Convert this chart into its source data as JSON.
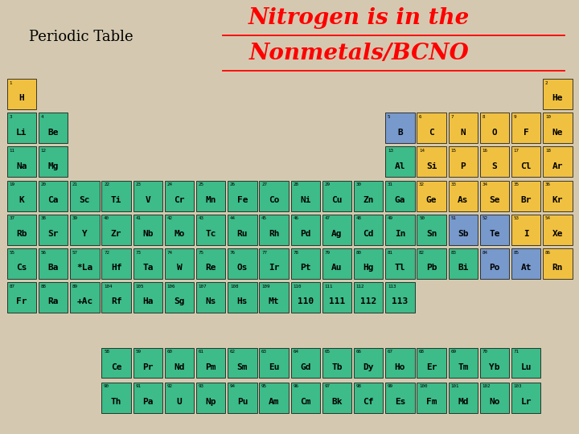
{
  "bg_color": "#d4c9b0",
  "title_left": "Periodic Table",
  "title_right_line1": "Nitrogen is in the",
  "title_right_line2": "Nonmetals/BCNO",
  "elements": [
    {
      "sym": "H",
      "num": 1,
      "col": 1,
      "row": 1,
      "color": "yellow"
    },
    {
      "sym": "He",
      "num": 2,
      "col": 18,
      "row": 1,
      "color": "yellow"
    },
    {
      "sym": "Li",
      "num": 3,
      "col": 1,
      "row": 2,
      "color": "green"
    },
    {
      "sym": "Be",
      "num": 4,
      "col": 2,
      "row": 2,
      "color": "green"
    },
    {
      "sym": "B",
      "num": 5,
      "col": 13,
      "row": 2,
      "color": "blue"
    },
    {
      "sym": "C",
      "num": 6,
      "col": 14,
      "row": 2,
      "color": "yellow"
    },
    {
      "sym": "N",
      "num": 7,
      "col": 15,
      "row": 2,
      "color": "yellow"
    },
    {
      "sym": "O",
      "num": 8,
      "col": 16,
      "row": 2,
      "color": "yellow"
    },
    {
      "sym": "F",
      "num": 9,
      "col": 17,
      "row": 2,
      "color": "yellow"
    },
    {
      "sym": "Ne",
      "num": 10,
      "col": 18,
      "row": 2,
      "color": "yellow"
    },
    {
      "sym": "Na",
      "num": 11,
      "col": 1,
      "row": 3,
      "color": "green"
    },
    {
      "sym": "Mg",
      "num": 12,
      "col": 2,
      "row": 3,
      "color": "green"
    },
    {
      "sym": "Al",
      "num": 13,
      "col": 13,
      "row": 3,
      "color": "green"
    },
    {
      "sym": "Si",
      "num": 14,
      "col": 14,
      "row": 3,
      "color": "yellow"
    },
    {
      "sym": "P",
      "num": 15,
      "col": 15,
      "row": 3,
      "color": "yellow"
    },
    {
      "sym": "S",
      "num": 16,
      "col": 16,
      "row": 3,
      "color": "yellow"
    },
    {
      "sym": "Cl",
      "num": 17,
      "col": 17,
      "row": 3,
      "color": "yellow"
    },
    {
      "sym": "Ar",
      "num": 18,
      "col": 18,
      "row": 3,
      "color": "yellow"
    },
    {
      "sym": "K",
      "num": 19,
      "col": 1,
      "row": 4,
      "color": "green"
    },
    {
      "sym": "Ca",
      "num": 20,
      "col": 2,
      "row": 4,
      "color": "green"
    },
    {
      "sym": "Sc",
      "num": 21,
      "col": 3,
      "row": 4,
      "color": "green"
    },
    {
      "sym": "Ti",
      "num": 22,
      "col": 4,
      "row": 4,
      "color": "green"
    },
    {
      "sym": "V",
      "num": 23,
      "col": 5,
      "row": 4,
      "color": "green"
    },
    {
      "sym": "Cr",
      "num": 24,
      "col": 6,
      "row": 4,
      "color": "green"
    },
    {
      "sym": "Mn",
      "num": 25,
      "col": 7,
      "row": 4,
      "color": "green"
    },
    {
      "sym": "Fe",
      "num": 26,
      "col": 8,
      "row": 4,
      "color": "green"
    },
    {
      "sym": "Co",
      "num": 27,
      "col": 9,
      "row": 4,
      "color": "green"
    },
    {
      "sym": "Ni",
      "num": 28,
      "col": 10,
      "row": 4,
      "color": "green"
    },
    {
      "sym": "Cu",
      "num": 29,
      "col": 11,
      "row": 4,
      "color": "green"
    },
    {
      "sym": "Zn",
      "num": 30,
      "col": 12,
      "row": 4,
      "color": "green"
    },
    {
      "sym": "Ga",
      "num": 31,
      "col": 13,
      "row": 4,
      "color": "green"
    },
    {
      "sym": "Ge",
      "num": 32,
      "col": 14,
      "row": 4,
      "color": "yellow"
    },
    {
      "sym": "As",
      "num": 33,
      "col": 15,
      "row": 4,
      "color": "yellow"
    },
    {
      "sym": "Se",
      "num": 34,
      "col": 16,
      "row": 4,
      "color": "yellow"
    },
    {
      "sym": "Br",
      "num": 35,
      "col": 17,
      "row": 4,
      "color": "yellow"
    },
    {
      "sym": "Kr",
      "num": 36,
      "col": 18,
      "row": 4,
      "color": "yellow"
    },
    {
      "sym": "Rb",
      "num": 37,
      "col": 1,
      "row": 5,
      "color": "green"
    },
    {
      "sym": "Sr",
      "num": 38,
      "col": 2,
      "row": 5,
      "color": "green"
    },
    {
      "sym": "Y",
      "num": 39,
      "col": 3,
      "row": 5,
      "color": "green"
    },
    {
      "sym": "Zr",
      "num": 40,
      "col": 4,
      "row": 5,
      "color": "green"
    },
    {
      "sym": "Nb",
      "num": 41,
      "col": 5,
      "row": 5,
      "color": "green"
    },
    {
      "sym": "Mo",
      "num": 42,
      "col": 6,
      "row": 5,
      "color": "green"
    },
    {
      "sym": "Tc",
      "num": 43,
      "col": 7,
      "row": 5,
      "color": "green"
    },
    {
      "sym": "Ru",
      "num": 44,
      "col": 8,
      "row": 5,
      "color": "green"
    },
    {
      "sym": "Rh",
      "num": 45,
      "col": 9,
      "row": 5,
      "color": "green"
    },
    {
      "sym": "Pd",
      "num": 46,
      "col": 10,
      "row": 5,
      "color": "green"
    },
    {
      "sym": "Ag",
      "num": 47,
      "col": 11,
      "row": 5,
      "color": "green"
    },
    {
      "sym": "Cd",
      "num": 48,
      "col": 12,
      "row": 5,
      "color": "green"
    },
    {
      "sym": "In",
      "num": 49,
      "col": 13,
      "row": 5,
      "color": "green"
    },
    {
      "sym": "Sn",
      "num": 50,
      "col": 14,
      "row": 5,
      "color": "green"
    },
    {
      "sym": "Sb",
      "num": 51,
      "col": 15,
      "row": 5,
      "color": "blue"
    },
    {
      "sym": "Te",
      "num": 52,
      "col": 16,
      "row": 5,
      "color": "blue"
    },
    {
      "sym": "I",
      "num": 53,
      "col": 17,
      "row": 5,
      "color": "yellow"
    },
    {
      "sym": "Xe",
      "num": 54,
      "col": 18,
      "row": 5,
      "color": "yellow"
    },
    {
      "sym": "Cs",
      "num": 55,
      "col": 1,
      "row": 6,
      "color": "green"
    },
    {
      "sym": "Ba",
      "num": 56,
      "col": 2,
      "row": 6,
      "color": "green"
    },
    {
      "sym": "*La",
      "num": 57,
      "col": 3,
      "row": 6,
      "color": "green"
    },
    {
      "sym": "Hf",
      "num": 72,
      "col": 4,
      "row": 6,
      "color": "green"
    },
    {
      "sym": "Ta",
      "num": 73,
      "col": 5,
      "row": 6,
      "color": "green"
    },
    {
      "sym": "W",
      "num": 74,
      "col": 6,
      "row": 6,
      "color": "green"
    },
    {
      "sym": "Re",
      "num": 75,
      "col": 7,
      "row": 6,
      "color": "green"
    },
    {
      "sym": "Os",
      "num": 76,
      "col": 8,
      "row": 6,
      "color": "green"
    },
    {
      "sym": "Ir",
      "num": 77,
      "col": 9,
      "row": 6,
      "color": "green"
    },
    {
      "sym": "Pt",
      "num": 78,
      "col": 10,
      "row": 6,
      "color": "green"
    },
    {
      "sym": "Au",
      "num": 79,
      "col": 11,
      "row": 6,
      "color": "green"
    },
    {
      "sym": "Hg",
      "num": 80,
      "col": 12,
      "row": 6,
      "color": "green"
    },
    {
      "sym": "Tl",
      "num": 81,
      "col": 13,
      "row": 6,
      "color": "green"
    },
    {
      "sym": "Pb",
      "num": 82,
      "col": 14,
      "row": 6,
      "color": "green"
    },
    {
      "sym": "Bi",
      "num": 83,
      "col": 15,
      "row": 6,
      "color": "green"
    },
    {
      "sym": "Po",
      "num": 84,
      "col": 16,
      "row": 6,
      "color": "blue"
    },
    {
      "sym": "At",
      "num": 85,
      "col": 17,
      "row": 6,
      "color": "blue"
    },
    {
      "sym": "Rn",
      "num": 86,
      "col": 18,
      "row": 6,
      "color": "yellow"
    },
    {
      "sym": "Fr",
      "num": 87,
      "col": 1,
      "row": 7,
      "color": "green"
    },
    {
      "sym": "Ra",
      "num": 88,
      "col": 2,
      "row": 7,
      "color": "green"
    },
    {
      "sym": "+Ac",
      "num": 89,
      "col": 3,
      "row": 7,
      "color": "green"
    },
    {
      "sym": "Rf",
      "num": 104,
      "col": 4,
      "row": 7,
      "color": "green"
    },
    {
      "sym": "Ha",
      "num": 105,
      "col": 5,
      "row": 7,
      "color": "green"
    },
    {
      "sym": "Sg",
      "num": 106,
      "col": 6,
      "row": 7,
      "color": "green"
    },
    {
      "sym": "Ns",
      "num": 107,
      "col": 7,
      "row": 7,
      "color": "green"
    },
    {
      "sym": "Hs",
      "num": 108,
      "col": 8,
      "row": 7,
      "color": "green"
    },
    {
      "sym": "Mt",
      "num": 109,
      "col": 9,
      "row": 7,
      "color": "green"
    },
    {
      "sym": "110",
      "num": 110,
      "col": 10,
      "row": 7,
      "color": "green"
    },
    {
      "sym": "111",
      "num": 111,
      "col": 11,
      "row": 7,
      "color": "green"
    },
    {
      "sym": "112",
      "num": 112,
      "col": 12,
      "row": 7,
      "color": "green"
    },
    {
      "sym": "113",
      "num": 113,
      "col": 13,
      "row": 7,
      "color": "green"
    },
    {
      "sym": "Ce",
      "num": 58,
      "col": 4,
      "row": 9,
      "color": "green"
    },
    {
      "sym": "Pr",
      "num": 59,
      "col": 5,
      "row": 9,
      "color": "green"
    },
    {
      "sym": "Nd",
      "num": 60,
      "col": 6,
      "row": 9,
      "color": "green"
    },
    {
      "sym": "Pm",
      "num": 61,
      "col": 7,
      "row": 9,
      "color": "green"
    },
    {
      "sym": "Sm",
      "num": 62,
      "col": 8,
      "row": 9,
      "color": "green"
    },
    {
      "sym": "Eu",
      "num": 63,
      "col": 9,
      "row": 9,
      "color": "green"
    },
    {
      "sym": "Gd",
      "num": 64,
      "col": 10,
      "row": 9,
      "color": "green"
    },
    {
      "sym": "Tb",
      "num": 65,
      "col": 11,
      "row": 9,
      "color": "green"
    },
    {
      "sym": "Dy",
      "num": 66,
      "col": 12,
      "row": 9,
      "color": "green"
    },
    {
      "sym": "Ho",
      "num": 67,
      "col": 13,
      "row": 9,
      "color": "green"
    },
    {
      "sym": "Er",
      "num": 68,
      "col": 14,
      "row": 9,
      "color": "green"
    },
    {
      "sym": "Tm",
      "num": 69,
      "col": 15,
      "row": 9,
      "color": "green"
    },
    {
      "sym": "Yb",
      "num": 70,
      "col": 16,
      "row": 9,
      "color": "green"
    },
    {
      "sym": "Lu",
      "num": 71,
      "col": 17,
      "row": 9,
      "color": "green"
    },
    {
      "sym": "Th",
      "num": 90,
      "col": 4,
      "row": 10,
      "color": "green"
    },
    {
      "sym": "Pa",
      "num": 91,
      "col": 5,
      "row": 10,
      "color": "green"
    },
    {
      "sym": "U",
      "num": 92,
      "col": 6,
      "row": 10,
      "color": "green"
    },
    {
      "sym": "Np",
      "num": 93,
      "col": 7,
      "row": 10,
      "color": "green"
    },
    {
      "sym": "Pu",
      "num": 94,
      "col": 8,
      "row": 10,
      "color": "green"
    },
    {
      "sym": "Am",
      "num": 95,
      "col": 9,
      "row": 10,
      "color": "green"
    },
    {
      "sym": "Cm",
      "num": 96,
      "col": 10,
      "row": 10,
      "color": "green"
    },
    {
      "sym": "Bk",
      "num": 97,
      "col": 11,
      "row": 10,
      "color": "green"
    },
    {
      "sym": "Cf",
      "num": 98,
      "col": 12,
      "row": 10,
      "color": "green"
    },
    {
      "sym": "Es",
      "num": 99,
      "col": 13,
      "row": 10,
      "color": "green"
    },
    {
      "sym": "Fm",
      "num": 100,
      "col": 14,
      "row": 10,
      "color": "green"
    },
    {
      "sym": "Md",
      "num": 101,
      "col": 15,
      "row": 10,
      "color": "green"
    },
    {
      "sym": "No",
      "num": 102,
      "col": 16,
      "row": 10,
      "color": "green"
    },
    {
      "sym": "Lr",
      "num": 103,
      "col": 17,
      "row": 10,
      "color": "green"
    }
  ]
}
